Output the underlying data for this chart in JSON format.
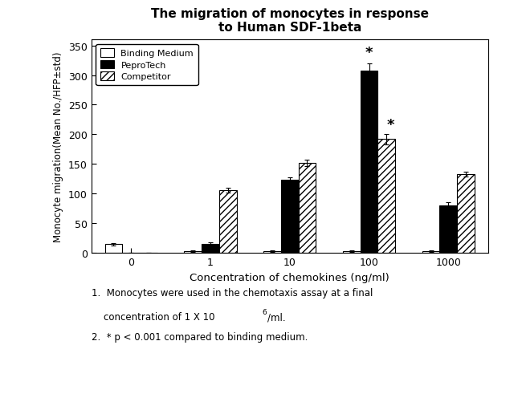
{
  "title_line1": "The migration of monocytes in response",
  "title_line2": "to Human SDF-1beta",
  "xlabel": "Concentration of chemokines (ng/ml)",
  "ylabel": "Monocyte migration(Mean No./HFP±std)",
  "x_positions": [
    0,
    1,
    2,
    3,
    4
  ],
  "x_labels": [
    "0",
    "1",
    "10",
    "100",
    "1000"
  ],
  "bar_width": 0.22,
  "binding_medium": [
    15,
    3,
    3,
    3,
    3
  ],
  "binding_medium_err": [
    2,
    1,
    1,
    1,
    1
  ],
  "pepro_tech": [
    0,
    15,
    123,
    308,
    80
  ],
  "pepro_tech_err": [
    0,
    3,
    5,
    12,
    5
  ],
  "competitor": [
    0,
    106,
    152,
    192,
    133
  ],
  "competitor_err": [
    0,
    4,
    5,
    9,
    4
  ],
  "ylim": [
    0,
    360
  ],
  "yticks": [
    0,
    50,
    100,
    150,
    200,
    250,
    300,
    350
  ],
  "legend_labels": [
    "Binding Medium",
    "PeproTech",
    "Competitor"
  ],
  "background_color": "#ffffff"
}
